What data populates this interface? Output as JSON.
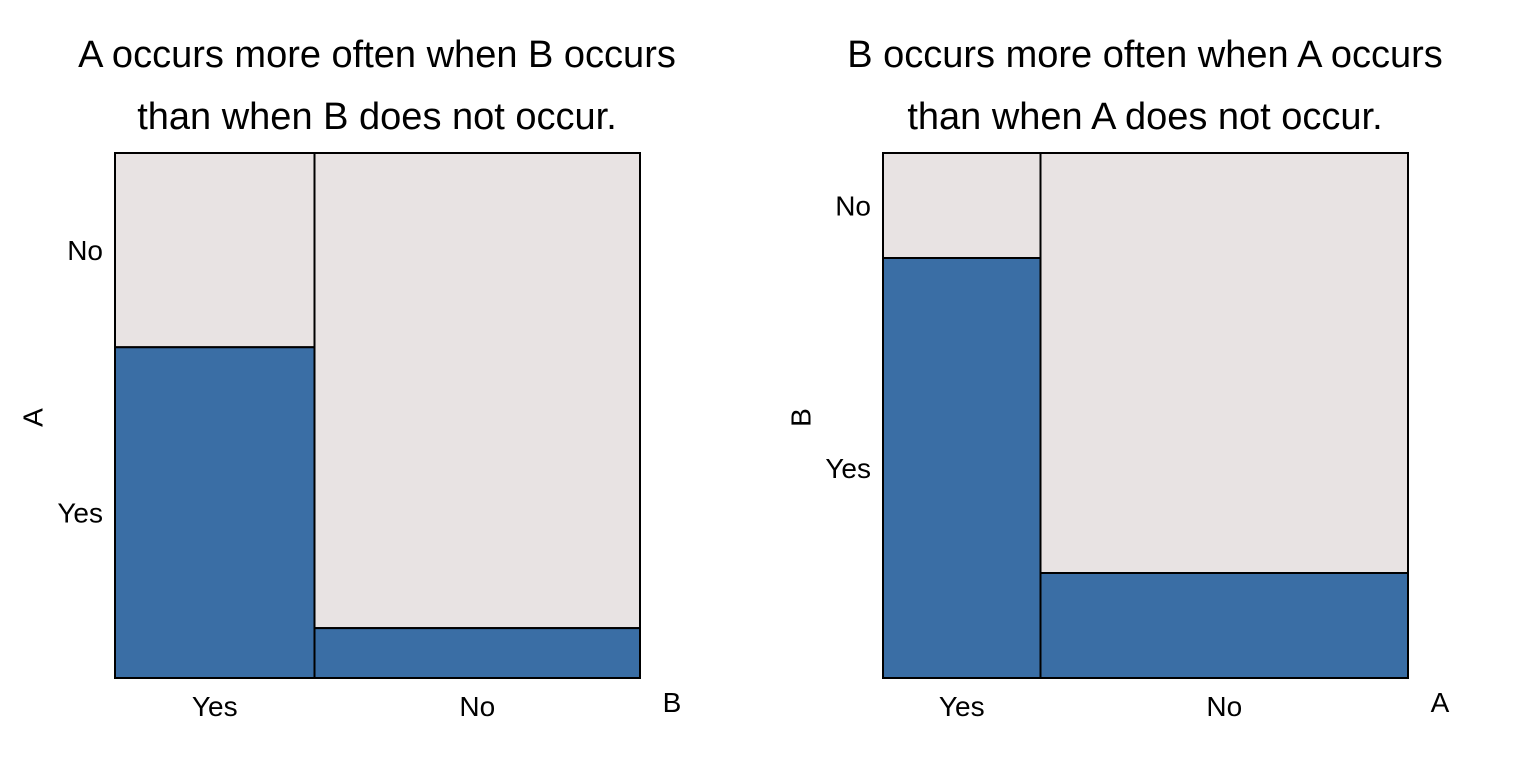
{
  "chart_data": [
    {
      "type": "mosaic",
      "title_lines": [
        "A occurs more often when B occurs",
        "than when B does not occur."
      ],
      "xlabel": "B",
      "ylabel": "A",
      "x_categories": [
        "Yes",
        "No"
      ],
      "y_categories": [
        "Yes",
        "No"
      ],
      "x_proportions": [
        0.38,
        0.62
      ],
      "y_yes_proportion_within_x": [
        0.63,
        0.095
      ],
      "colors": {
        "Yes": "#3a6ea5",
        "No": "#e8e3e3"
      }
    },
    {
      "type": "mosaic",
      "title_lines": [
        "B occurs more often when A occurs",
        "than when A does not occur."
      ],
      "xlabel": "A",
      "ylabel": "B",
      "x_categories": [
        "Yes",
        "No"
      ],
      "y_categories": [
        "Yes",
        "No"
      ],
      "x_proportions": [
        0.3,
        0.7
      ],
      "y_yes_proportion_within_x": [
        0.8,
        0.2
      ],
      "colors": {
        "Yes": "#3a6ea5",
        "No": "#e8e3e3"
      }
    }
  ]
}
